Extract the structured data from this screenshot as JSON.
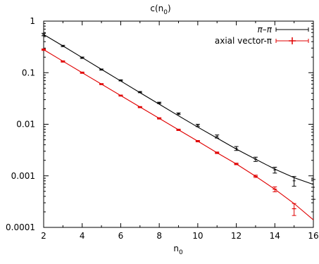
{
  "chart_data": {
    "type": "line",
    "title": "c(n0)",
    "title_main": "c(n",
    "title_sub": "0",
    "title_close": ")",
    "xlabel": "n0",
    "xlabel_main": "n",
    "xlabel_sub": "0",
    "ylabel": "",
    "yscale": "log",
    "xlim": [
      2,
      16
    ],
    "ylim": [
      0.0001,
      1
    ],
    "xticks": [
      2,
      4,
      6,
      8,
      10,
      12,
      14,
      16
    ],
    "xtick_labels": [
      "2",
      "4",
      "6",
      "8",
      "10",
      "12",
      "14",
      "16"
    ],
    "yticks": [
      0.0001,
      0.001,
      0.01,
      0.1,
      1
    ],
    "ytick_labels": [
      "0.0001",
      "0.001",
      "0.01",
      "0.1",
      "1"
    ],
    "grid": false,
    "legend_position": "top-right",
    "series": [
      {
        "name": "π–π",
        "color": "#000000",
        "points": [
          {
            "x": 2,
            "y": 0.55,
            "err": 0.03
          },
          {
            "x": 3,
            "y": 0.33,
            "err": 0.01
          },
          {
            "x": 4,
            "y": 0.195,
            "err": 0.006
          },
          {
            "x": 5,
            "y": 0.115,
            "err": 0.003
          },
          {
            "x": 6,
            "y": 0.071,
            "err": 0.0018
          },
          {
            "x": 7,
            "y": 0.042,
            "err": 0.0012
          },
          {
            "x": 8,
            "y": 0.026,
            "err": 0.0008
          },
          {
            "x": 9,
            "y": 0.016,
            "err": 0.0006
          },
          {
            "x": 10,
            "y": 0.0095,
            "err": 0.0005
          },
          {
            "x": 11,
            "y": 0.0058,
            "err": 0.0004
          },
          {
            "x": 12,
            "y": 0.0034,
            "err": 0.0003
          },
          {
            "x": 13,
            "y": 0.0021,
            "err": 0.0002
          },
          {
            "x": 14,
            "y": 0.0013,
            "err": 0.00017
          },
          {
            "x": 15,
            "y": 0.0008,
            "err": 0.00017
          },
          {
            "x": 16,
            "y": 0.0006,
            "err": 0.00025
          }
        ],
        "fit_curve": [
          [
            2,
            0.55
          ],
          [
            3,
            0.33
          ],
          [
            4,
            0.196
          ],
          [
            5,
            0.116
          ],
          [
            6,
            0.069
          ],
          [
            7,
            0.041
          ],
          [
            8,
            0.0245
          ],
          [
            9,
            0.0146
          ],
          [
            10,
            0.0088
          ],
          [
            11,
            0.0054
          ],
          [
            12,
            0.0033
          ],
          [
            13,
            0.0021
          ],
          [
            14,
            0.00135
          ],
          [
            15,
            0.00092
          ],
          [
            16,
            0.00068
          ]
        ]
      },
      {
        "name": "axial vector-π",
        "color": "#e00000",
        "points": [
          {
            "x": 2,
            "y": 0.28,
            "err": 0.01
          },
          {
            "x": 3,
            "y": 0.165,
            "err": 0.005
          },
          {
            "x": 4,
            "y": 0.1,
            "err": 0.003
          },
          {
            "x": 5,
            "y": 0.06,
            "err": 0.0015
          },
          {
            "x": 6,
            "y": 0.036,
            "err": 0.0009
          },
          {
            "x": 7,
            "y": 0.0215,
            "err": 0.0006
          },
          {
            "x": 8,
            "y": 0.013,
            "err": 0.0004
          },
          {
            "x": 9,
            "y": 0.0078,
            "err": 0.00025
          },
          {
            "x": 10,
            "y": 0.0047,
            "err": 0.00015
          },
          {
            "x": 11,
            "y": 0.0028,
            "err": 0.0001
          },
          {
            "x": 12,
            "y": 0.0017,
            "err": 6e-05
          },
          {
            "x": 13,
            "y": 0.00098,
            "err": 5e-05
          },
          {
            "x": 14,
            "y": 0.00055,
            "err": 6e-05
          },
          {
            "x": 15,
            "y": 0.00023,
            "err": 6e-05
          }
        ],
        "fit_curve": [
          [
            2,
            0.28
          ],
          [
            3,
            0.167
          ],
          [
            4,
            0.1
          ],
          [
            5,
            0.06
          ],
          [
            6,
            0.036
          ],
          [
            7,
            0.0216
          ],
          [
            8,
            0.013
          ],
          [
            9,
            0.0078
          ],
          [
            10,
            0.0047
          ],
          [
            11,
            0.0028
          ],
          [
            12,
            0.0017
          ],
          [
            13,
            0.00098
          ],
          [
            14,
            0.00055
          ],
          [
            15,
            0.00029
          ],
          [
            16,
            0.00014
          ]
        ]
      }
    ]
  }
}
